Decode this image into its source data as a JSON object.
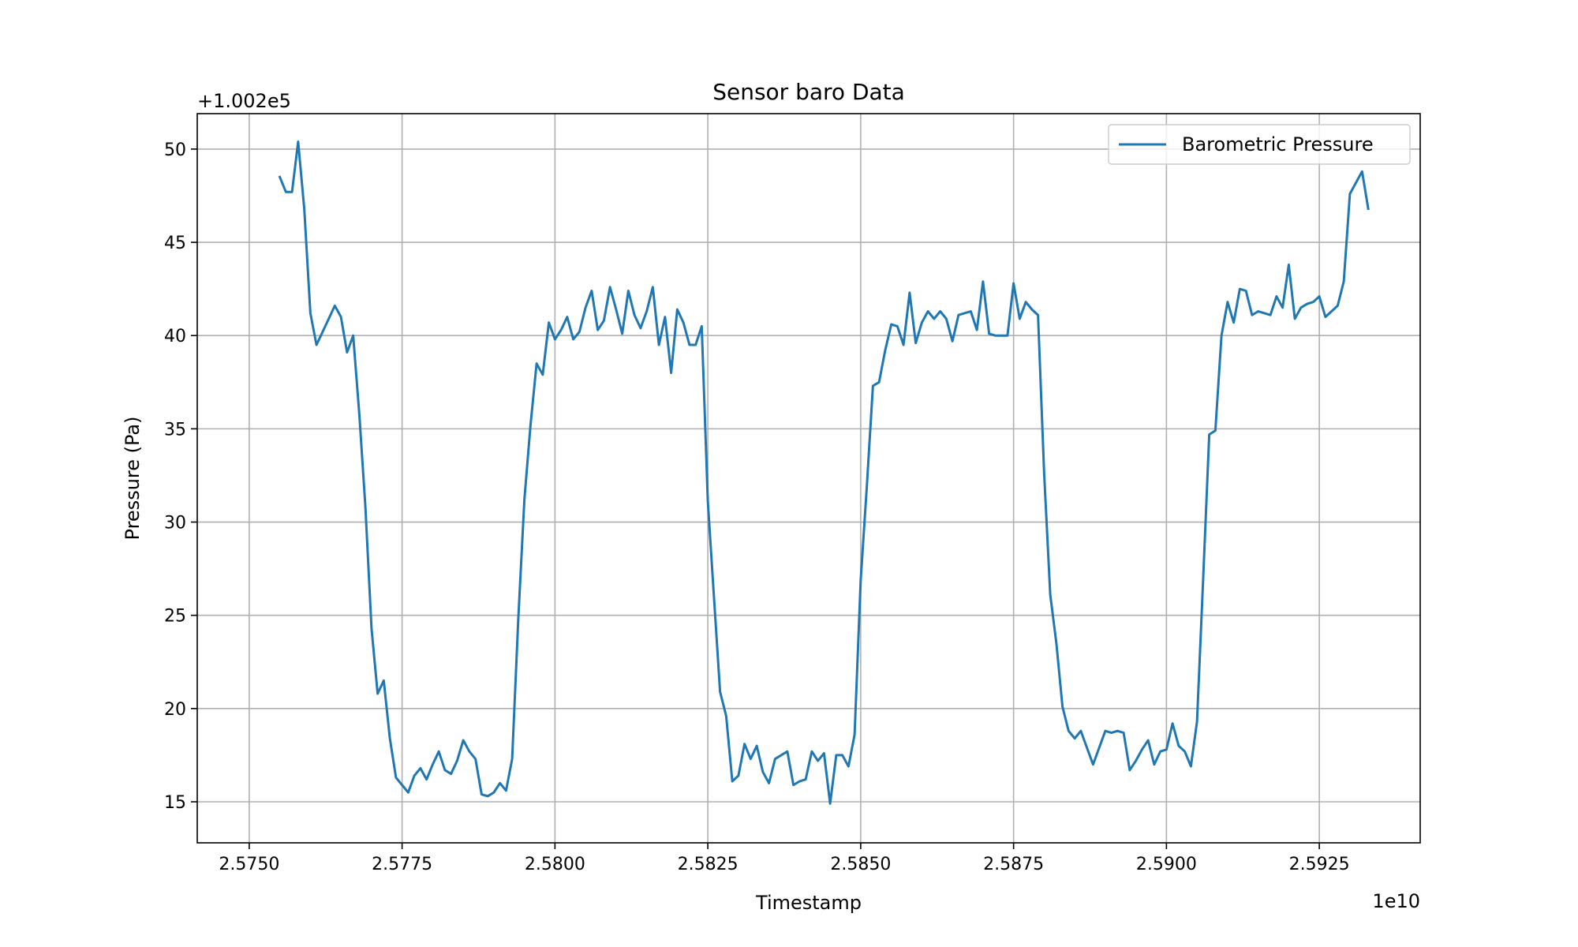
{
  "chart_data": {
    "type": "line",
    "title": "Sensor baro Data",
    "xlabel": "Timestamp",
    "ylabel": "Pressure (Pa)",
    "x_offset_label": "1e10",
    "y_offset_label": "+1.002e5",
    "x_scale": 10000000000,
    "y_offset": 100200,
    "xlim": [
      2.57415,
      2.59415
    ],
    "ylim": [
      12.8,
      51.9
    ],
    "x_ticks": [
      2.575,
      2.5775,
      2.58,
      2.5825,
      2.585,
      2.5875,
      2.59,
      2.5925
    ],
    "x_tick_labels": [
      "2.5750",
      "2.5775",
      "2.5800",
      "2.5825",
      "2.5850",
      "2.5875",
      "2.5900",
      "2.5925"
    ],
    "y_ticks": [
      15,
      20,
      25,
      30,
      35,
      40,
      45,
      50
    ],
    "y_tick_labels": [
      "15",
      "20",
      "25",
      "30",
      "35",
      "40",
      "45",
      "50"
    ],
    "grid": true,
    "legend_position": "upper right",
    "colors": {
      "series": "#1f77b4",
      "grid": "#b0b0b0",
      "axes": "#000000"
    },
    "series": [
      {
        "name": "Barometric Pressure",
        "x": [
          2.5755,
          2.5756,
          2.5757,
          2.5758,
          2.5759,
          2.576,
          2.5761,
          2.5762,
          2.5763,
          2.5764,
          2.5765,
          2.5766,
          2.5767,
          2.5768,
          2.5769,
          2.577,
          2.5771,
          2.5772,
          2.5773,
          2.5774,
          2.5775,
          2.5776,
          2.5777,
          2.5778,
          2.5779,
          2.578,
          2.5781,
          2.5782,
          2.5783,
          2.5784,
          2.5785,
          2.5786,
          2.5787,
          2.5788,
          2.5789,
          2.579,
          2.5791,
          2.5792,
          2.5793,
          2.5794,
          2.5795,
          2.5796,
          2.5797,
          2.5798,
          2.5799,
          2.58,
          2.5801,
          2.5802,
          2.5803,
          2.5804,
          2.5805,
          2.5806,
          2.5807,
          2.5808,
          2.5809,
          2.581,
          2.5811,
          2.5812,
          2.5813,
          2.5814,
          2.5815,
          2.5816,
          2.5817,
          2.5818,
          2.5819,
          2.582,
          2.5821,
          2.5822,
          2.5823,
          2.5824,
          2.5825,
          2.5826,
          2.5827,
          2.5828,
          2.5829,
          2.583,
          2.5831,
          2.5832,
          2.5833,
          2.5834,
          2.5835,
          2.5836,
          2.5837,
          2.5838,
          2.5839,
          2.584,
          2.5841,
          2.5842,
          2.5843,
          2.5844,
          2.5845,
          2.5846,
          2.5847,
          2.5848,
          2.5849,
          2.585,
          2.5851,
          2.5852,
          2.5853,
          2.5854,
          2.5855,
          2.5856,
          2.5857,
          2.5858,
          2.5859,
          2.586,
          2.5861,
          2.5862,
          2.5863,
          2.5864,
          2.5865,
          2.5866,
          2.5867,
          2.5868,
          2.5869,
          2.587,
          2.5871,
          2.5872,
          2.5873,
          2.5874,
          2.5875,
          2.5876,
          2.5877,
          2.5878,
          2.5879,
          2.588,
          2.5881,
          2.5882,
          2.5883,
          2.5884,
          2.5885,
          2.5886,
          2.5887,
          2.5888,
          2.5889,
          2.589,
          2.5891,
          2.5892,
          2.5893,
          2.5894,
          2.5895,
          2.5896,
          2.5897,
          2.5898,
          2.5899,
          2.59,
          2.5901,
          2.5902,
          2.5903,
          2.5904,
          2.5905,
          2.5906,
          2.5907,
          2.5908,
          2.5909,
          2.591,
          2.5911,
          2.5912,
          2.5913,
          2.5914,
          2.5915,
          2.5916,
          2.5917,
          2.5918,
          2.5919,
          2.592,
          2.5921,
          2.5922,
          2.5923,
          2.5924,
          2.5925,
          2.5926,
          2.5927,
          2.5928,
          2.5929,
          2.593,
          2.5931,
          2.5932,
          2.5933
        ],
        "y": [
          48.5,
          47.7,
          47.7,
          50.4,
          46.8,
          41.2,
          39.5,
          40.2,
          40.9,
          41.6,
          41.0,
          39.1,
          40.0,
          35.8,
          30.8,
          24.3,
          20.8,
          21.5,
          18.4,
          16.3,
          15.9,
          15.5,
          16.4,
          16.8,
          16.2,
          17.0,
          17.7,
          16.7,
          16.5,
          17.2,
          18.3,
          17.7,
          17.3,
          15.4,
          15.3,
          15.5,
          16.0,
          15.6,
          17.3,
          24.8,
          31.2,
          35.2,
          38.5,
          37.9,
          40.7,
          39.8,
          40.3,
          41.0,
          39.8,
          40.2,
          41.5,
          42.4,
          40.3,
          40.8,
          42.6,
          41.4,
          40.1,
          42.4,
          41.1,
          40.4,
          41.3,
          42.6,
          39.5,
          41.0,
          38.0,
          41.4,
          40.7,
          39.5,
          39.5,
          40.5,
          31.1,
          26.0,
          20.9,
          19.6,
          16.1,
          16.4,
          18.1,
          17.3,
          18.0,
          16.6,
          16.0,
          17.3,
          17.5,
          17.7,
          15.9,
          16.1,
          16.2,
          17.7,
          17.2,
          17.6,
          14.9,
          17.5,
          17.5,
          16.9,
          18.6,
          26.9,
          31.9,
          37.3,
          37.5,
          39.2,
          40.6,
          40.5,
          39.5,
          42.3,
          39.6,
          40.7,
          41.3,
          40.9,
          41.3,
          40.9,
          39.7,
          41.1,
          41.2,
          41.3,
          40.3,
          42.9,
          40.1,
          40.0,
          40.0,
          40.0,
          42.8,
          40.9,
          41.8,
          41.4,
          41.1,
          32.6,
          26.1,
          23.5,
          20.1,
          18.8,
          18.4,
          18.8,
          17.9,
          17.0,
          17.9,
          18.8,
          18.7,
          18.8,
          18.7,
          16.7,
          17.2,
          17.8,
          18.3,
          17.0,
          17.7,
          17.8,
          19.2,
          18.0,
          17.7,
          16.9,
          19.3,
          26.9,
          34.7,
          34.9,
          40.0,
          41.8,
          40.7,
          42.5,
          42.4,
          41.1,
          41.3,
          41.2,
          41.1,
          42.1,
          41.5,
          43.8,
          40.9,
          41.5,
          41.7,
          41.8,
          42.1,
          41.0,
          41.3,
          41.6,
          42.9,
          47.6,
          48.2,
          48.8,
          46.8
        ]
      }
    ]
  }
}
